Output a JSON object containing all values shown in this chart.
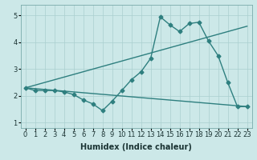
{
  "xlabel": "Humidex (Indice chaleur)",
  "ylabel": "",
  "bg_color": "#cce8e8",
  "grid_color": "#aacfcf",
  "line_color": "#2e7f7f",
  "xlim": [
    -0.5,
    23.5
  ],
  "ylim": [
    0.8,
    5.4
  ],
  "xticks": [
    0,
    1,
    2,
    3,
    4,
    5,
    6,
    7,
    8,
    9,
    10,
    11,
    12,
    13,
    14,
    15,
    16,
    17,
    18,
    19,
    20,
    21,
    22,
    23
  ],
  "yticks": [
    1,
    2,
    3,
    4,
    5
  ],
  "series1_x": [
    0,
    1,
    2,
    3,
    4,
    5,
    6,
    7,
    8,
    9,
    10,
    11,
    12,
    13,
    14,
    15,
    16,
    17,
    18,
    19,
    20,
    21,
    22,
    23
  ],
  "series1_y": [
    2.3,
    2.2,
    2.2,
    2.2,
    2.15,
    2.05,
    1.85,
    1.7,
    1.45,
    1.8,
    2.2,
    2.6,
    2.9,
    3.4,
    4.95,
    4.65,
    4.4,
    4.7,
    4.75,
    4.05,
    3.5,
    2.5,
    1.6,
    1.6
  ],
  "series2_x": [
    0,
    23
  ],
  "series2_y": [
    2.3,
    4.6
  ],
  "series3_x": [
    0,
    23
  ],
  "series3_y": [
    2.3,
    1.6
  ],
  "marker": "D",
  "markersize": 2.5,
  "linewidth": 1.0,
  "xlabel_fontsize": 7,
  "tick_fontsize": 6
}
